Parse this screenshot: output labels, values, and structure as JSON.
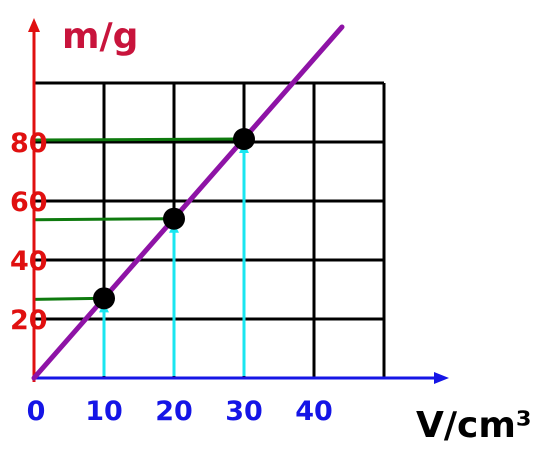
{
  "chart_data": {
    "type": "line",
    "title": "",
    "xlabel": "V/cm³",
    "ylabel": "m/g",
    "xlim": [
      0,
      50
    ],
    "ylim": [
      0,
      100
    ],
    "x_ticks": [
      {
        "value": 0,
        "label": "0"
      },
      {
        "value": 10,
        "label": "10"
      },
      {
        "value": 20,
        "label": "20"
      },
      {
        "value": 30,
        "label": "30"
      },
      {
        "value": 40,
        "label": "40"
      }
    ],
    "y_ticks": [
      {
        "value": 20,
        "label": "20"
      },
      {
        "value": 40,
        "label": "40"
      },
      {
        "value": 60,
        "label": "60"
      },
      {
        "value": 80,
        "label": "80"
      }
    ],
    "grid": true,
    "points": [
      {
        "x": 10,
        "y": 27
      },
      {
        "x": 20,
        "y": 54
      },
      {
        "x": 30,
        "y": 81
      }
    ],
    "line": {
      "x": [
        0,
        44
      ],
      "y": [
        0,
        119
      ]
    },
    "colors": {
      "x_axis": "#1515e6",
      "y_axis": "#e01010",
      "grid": "#000000",
      "fit_line": "#8e13a6",
      "guide_vertical": "#19e6f0",
      "guide_horizontal": "#0e7a0e",
      "points": "#000000",
      "tick_x": "#1515e6",
      "tick_y": "#e01010",
      "label_y": "#c8143c",
      "label_x": "#000000"
    }
  }
}
